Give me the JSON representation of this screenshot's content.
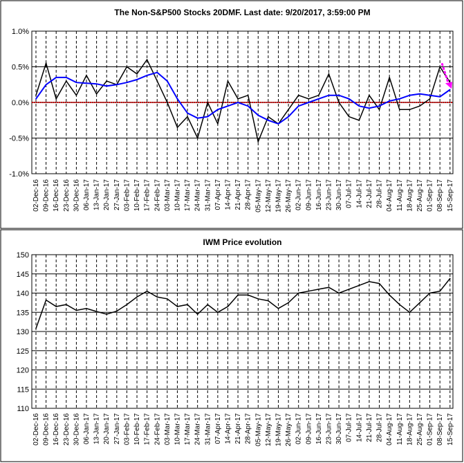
{
  "chart_data": [
    {
      "type": "line",
      "title": "The Non-S&P500 Stocks 20DMF. Last date: 9/20/2017, 3:59:00 PM",
      "ylim": [
        -1.0,
        1.0
      ],
      "yticks": [
        "1.0%",
        "0.5%",
        "0.0%",
        "-0.5%",
        "-1.0%"
      ],
      "ytick_values": [
        1.0,
        0.5,
        0.0,
        -0.5,
        -1.0
      ],
      "grid": "vertical dashed per week, horizontal solid",
      "categories": [
        "02-Dec-16",
        "09-Dec-16",
        "16-Dec-16",
        "23-Dec-16",
        "30-Dec-16",
        "06-Jan-17",
        "13-Jan-17",
        "20-Jan-17",
        "27-Jan-17",
        "03-Feb-17",
        "10-Feb-17",
        "17-Feb-17",
        "24-Feb-17",
        "03-Mar-17",
        "10-Mar-17",
        "17-Mar-17",
        "24-Mar-17",
        "31-Mar-17",
        "07-Apr-17",
        "14-Apr-17",
        "21-Apr-17",
        "28-Apr-17",
        "05-May-17",
        "12-May-17",
        "19-May-17",
        "26-May-17",
        "02-Jun-17",
        "09-Jun-17",
        "16-Jun-17",
        "23-Jun-17",
        "30-Jun-17",
        "07-Jul-17",
        "14-Jul-17",
        "21-Jul-17",
        "28-Jul-17",
        "04-Aug-17",
        "11-Aug-17",
        "18-Aug-17",
        "25-Aug-17",
        "01-Sep-17",
        "08-Sep-17",
        "15-Sep-17"
      ],
      "series": [
        {
          "color": "#000000",
          "values": [
            0.1,
            0.55,
            0.05,
            0.3,
            0.1,
            0.38,
            0.12,
            0.3,
            0.25,
            0.5,
            0.4,
            0.6,
            0.3,
            0.0,
            -0.35,
            -0.2,
            -0.5,
            0.0,
            -0.3,
            0.3,
            0.05,
            0.1,
            -0.55,
            -0.2,
            -0.3,
            -0.1,
            0.1,
            0.05,
            0.1,
            0.4,
            0.0,
            -0.2,
            -0.25,
            0.1,
            -0.1,
            0.35,
            -0.1,
            -0.1,
            -0.05,
            0.05,
            0.5,
            0.28
          ]
        },
        {
          "color": "#0000ff",
          "values": [
            0.05,
            0.25,
            0.35,
            0.35,
            0.28,
            0.27,
            0.26,
            0.23,
            0.25,
            0.28,
            0.32,
            0.38,
            0.42,
            0.3,
            0.05,
            -0.15,
            -0.22,
            -0.2,
            -0.1,
            -0.05,
            0.0,
            -0.05,
            -0.18,
            -0.25,
            -0.3,
            -0.2,
            -0.05,
            0.0,
            0.05,
            0.1,
            0.1,
            0.05,
            -0.05,
            -0.08,
            -0.05,
            0.02,
            0.05,
            0.1,
            0.12,
            0.1,
            0.08,
            0.18
          ]
        }
      ],
      "reference_line": {
        "y": 0.0,
        "color": "#cc0000"
      },
      "arrow_color": "#ff00ff"
    },
    {
      "type": "line",
      "title": "IWM Price evolution",
      "ylim": [
        110,
        150
      ],
      "yticks": [
        "150",
        "145",
        "140",
        "135",
        "130",
        "125",
        "120",
        "115",
        "110"
      ],
      "ytick_values": [
        150,
        145,
        140,
        135,
        130,
        125,
        120,
        115,
        110
      ],
      "grid": "vertical dashed per week, horizontal solid",
      "categories": [
        "02-Dec-16",
        "09-Dec-16",
        "16-Dec-16",
        "23-Dec-16",
        "30-Dec-16",
        "06-Jan-17",
        "13-Jan-17",
        "20-Jan-17",
        "27-Jan-17",
        "03-Feb-17",
        "10-Feb-17",
        "17-Feb-17",
        "24-Feb-17",
        "03-Mar-17",
        "10-Mar-17",
        "17-Mar-17",
        "24-Mar-17",
        "31-Mar-17",
        "07-Apr-17",
        "14-Apr-17",
        "21-Apr-17",
        "28-Apr-17",
        "05-May-17",
        "12-May-17",
        "19-May-17",
        "26-May-17",
        "02-Jun-17",
        "09-Jun-17",
        "16-Jun-17",
        "23-Jun-17",
        "30-Jun-17",
        "07-Jul-17",
        "14-Jul-17",
        "21-Jul-17",
        "28-Jul-17",
        "04-Aug-17",
        "11-Aug-17",
        "18-Aug-17",
        "25-Aug-17",
        "01-Sep-17",
        "08-Sep-17",
        "15-Sep-17"
      ],
      "series": [
        {
          "color": "#000000",
          "values": [
            130.8,
            138.2,
            136.5,
            137.0,
            135.5,
            136.0,
            135.2,
            134.5,
            135.3,
            137.0,
            139.0,
            140.5,
            139.0,
            138.5,
            136.5,
            137.0,
            134.5,
            137.0,
            135.0,
            136.5,
            139.5,
            139.5,
            138.5,
            138.0,
            136.0,
            137.5,
            140.0,
            140.5,
            141.0,
            141.5,
            140.0,
            141.0,
            142.0,
            143.0,
            142.5,
            139.5,
            137.0,
            135.0,
            137.5,
            140.0,
            140.5,
            143.8
          ]
        }
      ]
    }
  ]
}
